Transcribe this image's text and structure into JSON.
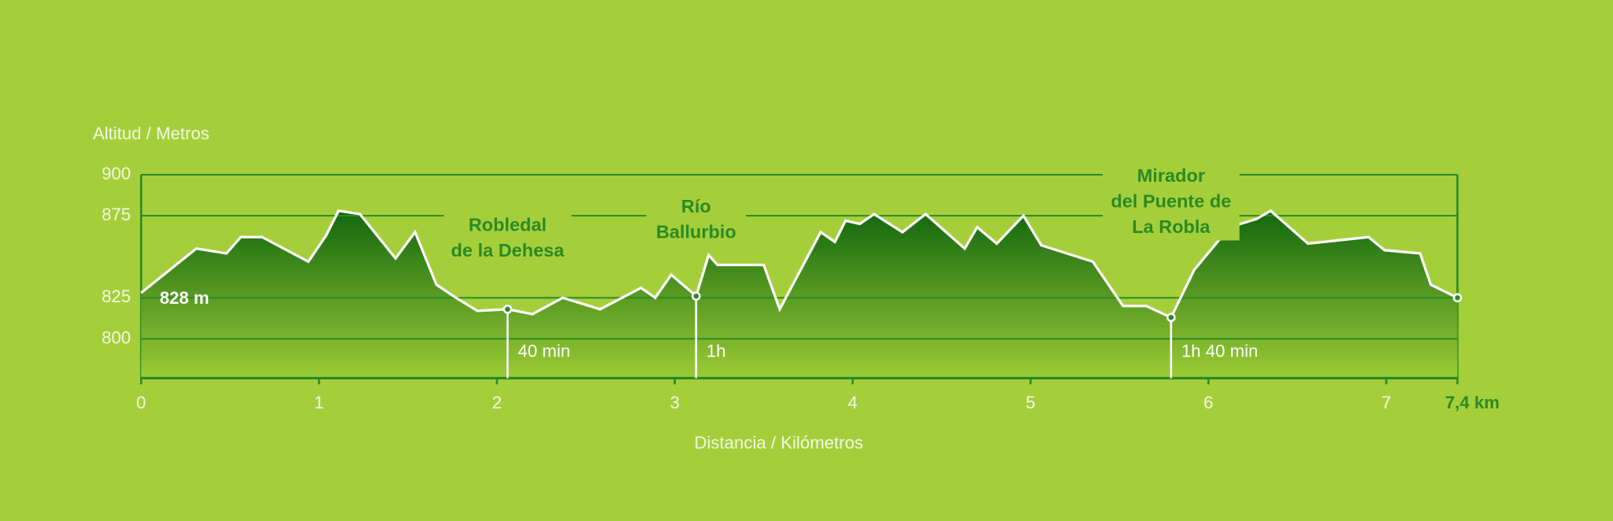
{
  "chart_data": {
    "type": "area",
    "y_label": "Altitud / Metros",
    "x_label": "Distancia / Kilómetros",
    "start_label": "828 m",
    "x": [
      0,
      0.31,
      0.48,
      0.56,
      0.68,
      0.94,
      1.04,
      1.11,
      1.23,
      1.43,
      1.54,
      1.66,
      1.77,
      1.89,
      2.06,
      2.2,
      2.37,
      2.58,
      2.81,
      2.89,
      2.98,
      3.12,
      3.19,
      3.24,
      3.5,
      3.59,
      3.82,
      3.9,
      3.96,
      4.04,
      4.12,
      4.28,
      4.41,
      4.63,
      4.7,
      4.81,
      4.96,
      5.06,
      5.35,
      5.52,
      5.65,
      5.79,
      5.92,
      6.12,
      6.27,
      6.35,
      6.56,
      6.9,
      6.99,
      7.19,
      7.25,
      7.4
    ],
    "values": [
      828,
      855,
      852,
      862,
      862,
      847,
      863,
      878,
      876,
      849,
      865,
      833,
      825,
      817,
      818,
      815,
      825,
      818,
      831,
      825,
      839,
      826,
      851,
      845,
      845,
      818,
      865,
      859,
      872,
      870,
      876,
      865,
      876,
      855,
      868,
      858,
      875,
      857,
      847,
      820,
      820,
      813,
      842,
      868,
      873,
      878,
      858,
      862,
      854,
      852,
      833,
      825
    ],
    "waypoints": [
      {
        "name": [
          "Robledal",
          "de la Dehesa"
        ],
        "x": 2.06,
        "y": 818,
        "time": "40 min"
      },
      {
        "name": [
          "Río",
          "Ballurbio"
        ],
        "x": 3.12,
        "y": 826,
        "time": "1h"
      },
      {
        "name": [
          "Mirador",
          "del Puente de",
          "La Robla"
        ],
        "x": 5.79,
        "y": 813,
        "time": "1h 40 min"
      }
    ],
    "xlim": [
      0,
      7.4
    ],
    "xticks": [
      0,
      1,
      2,
      3,
      4,
      5,
      6,
      7,
      {
        "value": 7.4,
        "label": "7,4 km"
      }
    ],
    "ylim": [
      776,
      900
    ],
    "yticks": [
      800,
      825,
      875,
      900
    ],
    "grid": true,
    "color": "#ffffff"
  }
}
